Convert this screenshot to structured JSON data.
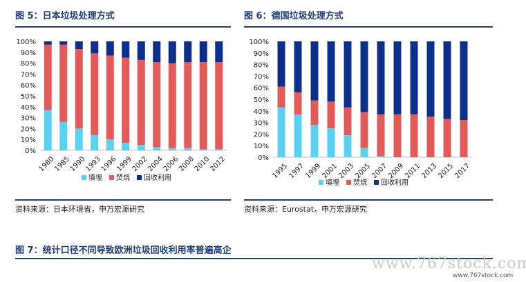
{
  "colors": {
    "landfill": "#5bd1f2",
    "incineration": "#e45a59",
    "recycling": "#0b2f8a",
    "accent": "#1f3f7a"
  },
  "fig5": {
    "title": "图 5：日本垃圾处理方式",
    "source": "资料来源：日本环境省，申万宏源研究"
  },
  "fig6": {
    "title": "图 6：德国垃圾处理方式",
    "source": "资料来源：Eurostat，申万宏源研究"
  },
  "fig7": {
    "title": "图 7：统计口径不同导致欧洲垃圾回收利用率普遍高企"
  },
  "watermark": {
    "main": "www.767stock.com",
    "sub": "www.767stock.com"
  },
  "chart_data": [
    {
      "type": "bar",
      "stacked": true,
      "categories": [
        "1980",
        "1985",
        "1990",
        "1993",
        "1996",
        "1999",
        "2002",
        "2004",
        "2006",
        "2008",
        "2010",
        "2012"
      ],
      "series": [
        {
          "name": "填埋",
          "values": [
            37,
            26,
            20,
            14,
            10,
            7,
            5,
            3,
            2,
            2,
            1,
            1
          ]
        },
        {
          "name": "焚烧",
          "values": [
            60,
            71,
            73,
            75,
            77,
            78,
            78,
            78,
            78,
            79,
            80,
            80
          ]
        },
        {
          "name": "回收利用",
          "values": [
            3,
            3,
            7,
            11,
            13,
            15,
            17,
            19,
            20,
            19,
            19,
            19
          ]
        }
      ],
      "yticks": [
        "0%",
        "10%",
        "20%",
        "30%",
        "40%",
        "50%",
        "60%",
        "70%",
        "80%",
        "90%",
        "100%"
      ],
      "ylim": [
        0,
        100
      ],
      "legend": "bottom",
      "grid": false
    },
    {
      "type": "bar",
      "stacked": true,
      "categories": [
        "1995",
        "1997",
        "1999",
        "2001",
        "2003",
        "2005",
        "2007",
        "2009",
        "2011",
        "2013",
        "2015",
        "2017"
      ],
      "series": [
        {
          "name": "填埋",
          "values": [
            43,
            37,
            28,
            25,
            19,
            8,
            1,
            0,
            0,
            0,
            0,
            0
          ]
        },
        {
          "name": "焚烧",
          "values": [
            18,
            19,
            21,
            23,
            24,
            31,
            36,
            37,
            37,
            35,
            33,
            32
          ]
        },
        {
          "name": "回收利用",
          "values": [
            39,
            44,
            51,
            52,
            57,
            61,
            63,
            63,
            63,
            65,
            67,
            68
          ]
        }
      ],
      "yticks": [
        "0%",
        "10%",
        "20%",
        "30%",
        "40%",
        "50%",
        "60%",
        "70%",
        "80%",
        "90%",
        "100%"
      ],
      "ylim": [
        0,
        100
      ],
      "legend": "bottom",
      "grid": false
    }
  ]
}
